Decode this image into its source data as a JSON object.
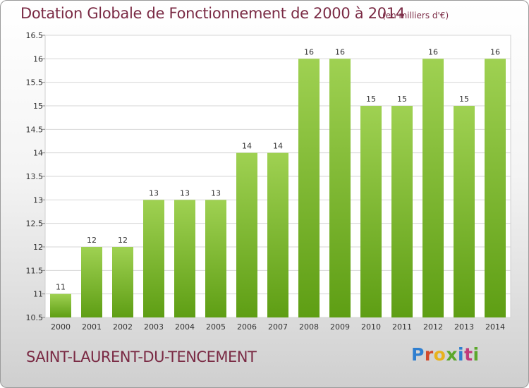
{
  "chart_data": {
    "type": "bar",
    "title": "Dotation Globale de Fonctionnement de 2000 à 2014",
    "subtitle": "(en milliers d'€)",
    "categories": [
      "2000",
      "2001",
      "2002",
      "2003",
      "2004",
      "2005",
      "2006",
      "2007",
      "2008",
      "2009",
      "2010",
      "2011",
      "2012",
      "2013",
      "2014"
    ],
    "values": [
      11,
      12,
      12,
      13,
      13,
      13,
      14,
      14,
      16,
      16,
      15,
      15,
      16,
      15,
      16
    ],
    "data_labels": [
      "11",
      "12",
      "12",
      "13",
      "13",
      "13",
      "14",
      "14",
      "16",
      "16",
      "15",
      "15",
      "16",
      "15",
      "16"
    ],
    "y_ticks": [
      "10.5",
      "11",
      "11.5",
      "12",
      "12.5",
      "13",
      "13.5",
      "14",
      "14.5",
      "15",
      "15.5",
      "16",
      "16.5"
    ],
    "ylim": [
      10.5,
      16.5
    ],
    "xlabel": "",
    "ylabel": "",
    "grid": true,
    "bar_color_top": "#9fd152",
    "bar_color_bottom": "#5e9e14"
  },
  "commune_name": "SAINT-LAURENT-DU-TENCEMENT",
  "logo_text": "Proxiti"
}
